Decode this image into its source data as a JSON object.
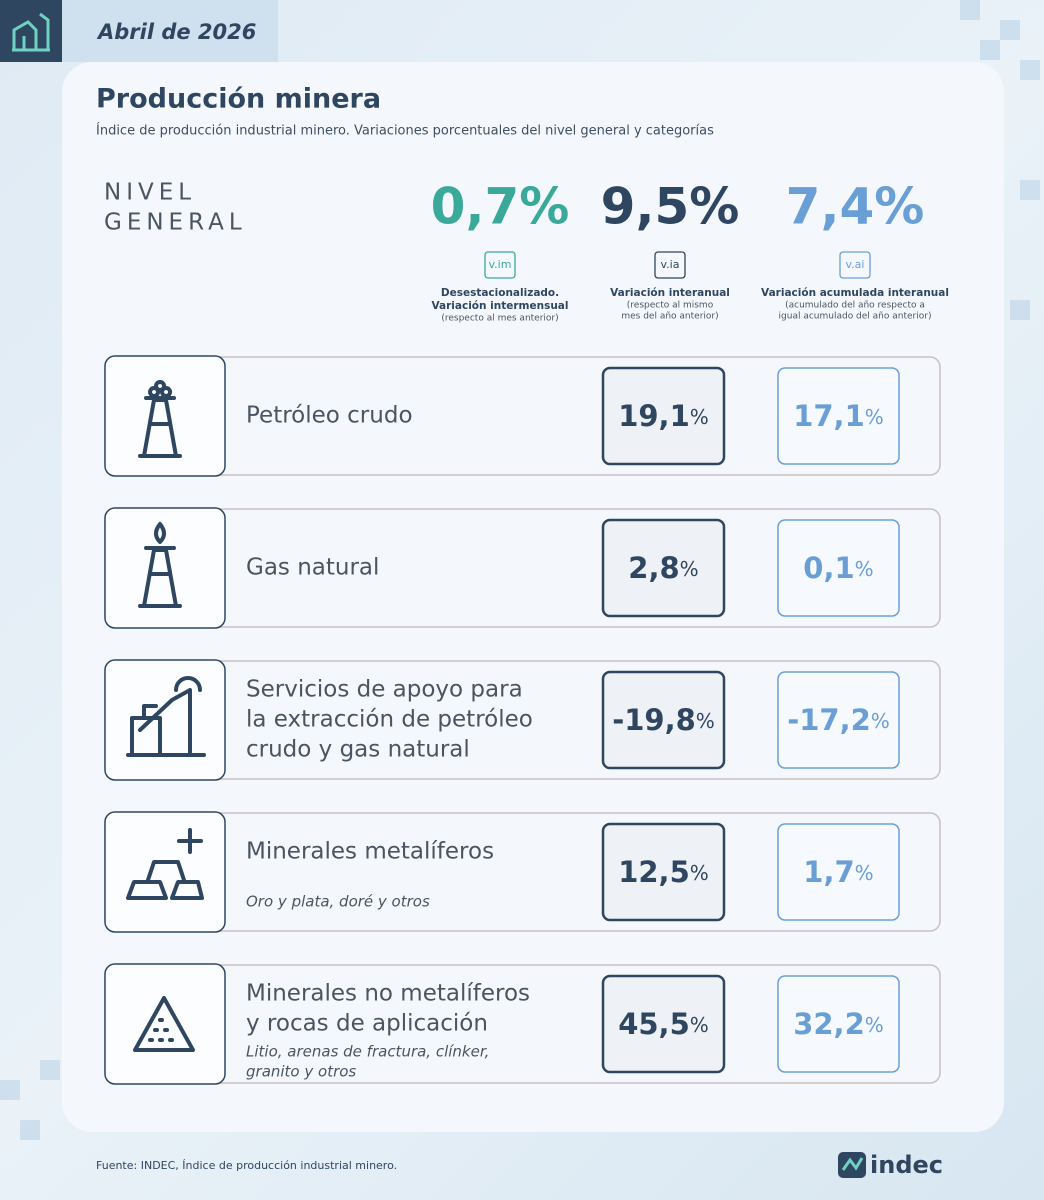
{
  "header": {
    "date": "Abril de 2026"
  },
  "title": "Producción minera",
  "subtitle": "Índice de producción industrial minero. Variaciones porcentuales del nivel general y categorías",
  "general": {
    "label": [
      "NIVEL",
      "GENERAL"
    ],
    "metrics": [
      {
        "value": "0,7%",
        "tag": "v.im",
        "desc": [
          "Desestacionalizado.",
          "Variación intermensual"
        ],
        "note": [
          "(respecto al mes anterior)"
        ],
        "color": "#3aa99a"
      },
      {
        "value": "9,5%",
        "tag": "v.ia",
        "desc": [
          "Variación interanual"
        ],
        "note": [
          "(respecto al mismo",
          "mes del año anterior)"
        ],
        "color": "#2f4660"
      },
      {
        "value": "7,4%",
        "tag": "v.ai",
        "desc": [
          "Variación acumulada interanual"
        ],
        "note": [
          "(acumulado del año respecto a",
          "igual acumulado del año anterior)"
        ],
        "color": "#6a9fd6"
      }
    ]
  },
  "categories": [
    {
      "name": [
        "Petróleo crudo"
      ],
      "detail": [],
      "via": {
        "value": "19,1",
        "unit": "%"
      },
      "vai": {
        "value": "17,1",
        "unit": "%"
      }
    },
    {
      "name": [
        "Gas natural"
      ],
      "detail": [],
      "via": {
        "value": "2,8",
        "unit": "%"
      },
      "vai": {
        "value": "0,1",
        "unit": "%"
      }
    },
    {
      "name": [
        "Servicios de apoyo para",
        "la extracción de petróleo",
        "crudo y gas natural"
      ],
      "detail": [],
      "via": {
        "value": "-19,8",
        "unit": "%"
      },
      "vai": {
        "value": "-17,2",
        "unit": "%"
      }
    },
    {
      "name": [
        "Minerales metalíferos"
      ],
      "detail": [
        "Oro y plata, doré y otros"
      ],
      "via": {
        "value": "12,5",
        "unit": "%"
      },
      "vai": {
        "value": "1,7",
        "unit": "%"
      }
    },
    {
      "name": [
        "Minerales no metalíferos",
        "y rocas de aplicación"
      ],
      "detail": [
        "Litio, arenas de fractura, clínker,",
        "granito y otros"
      ],
      "via": {
        "value": "45,5",
        "unit": "%"
      },
      "vai": {
        "value": "32,2",
        "unit": "%"
      }
    }
  ],
  "footer": {
    "source": "Fuente: INDEC, Índice de producción industrial minero.",
    "logo": "indec"
  }
}
